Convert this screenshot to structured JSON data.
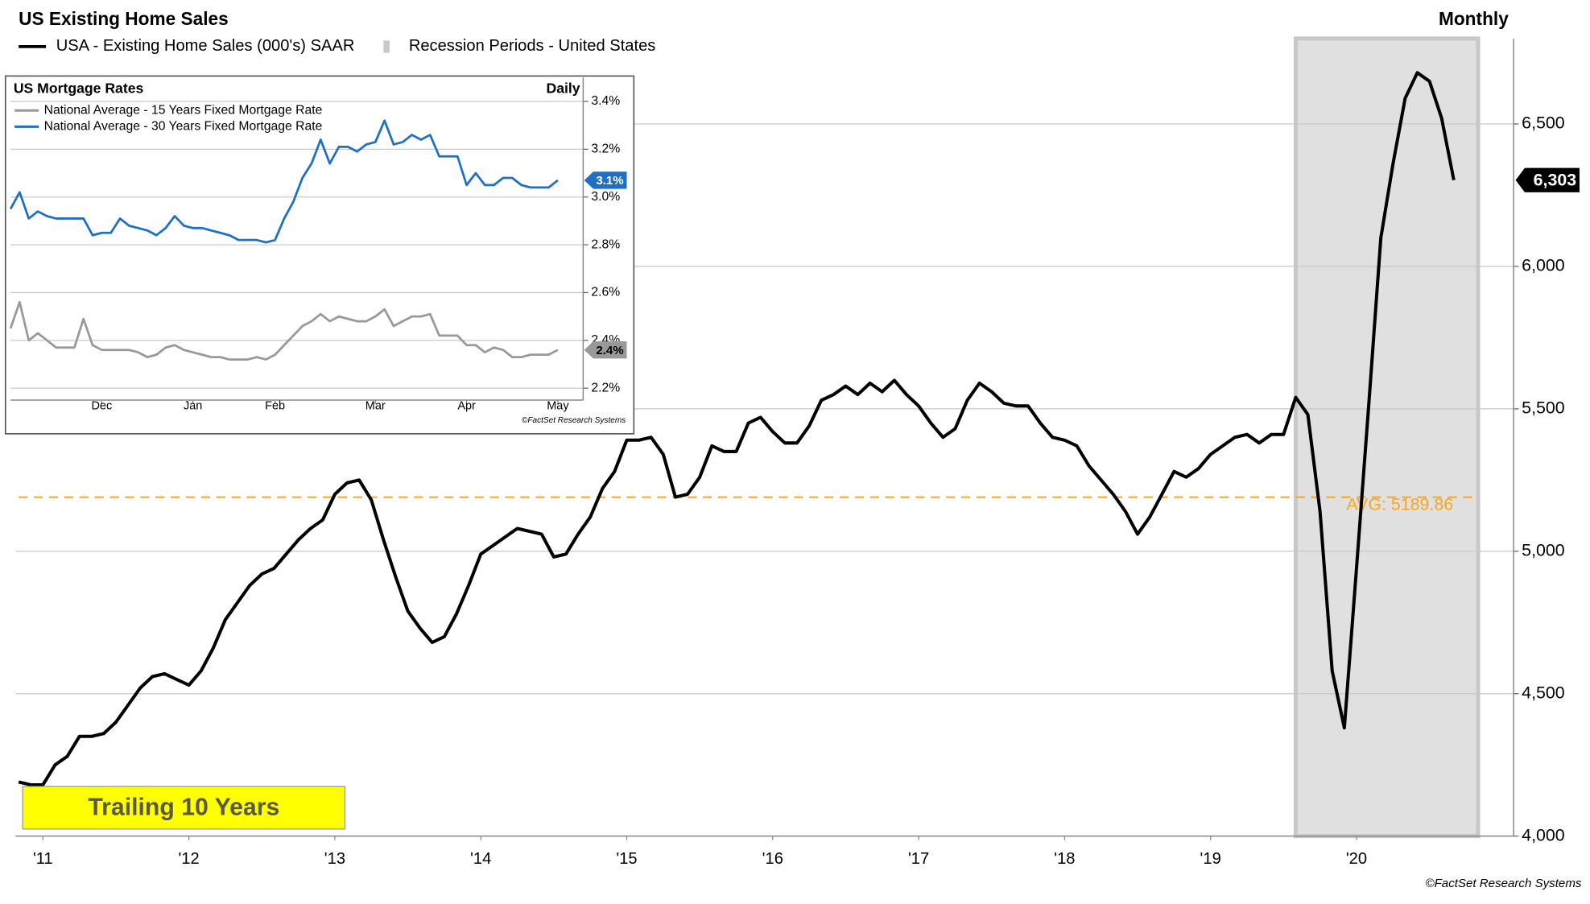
{
  "chart_data": [
    {
      "type": "line",
      "title": "US Existing Home Sales",
      "frequency": "Monthly",
      "categories": [
        null,
        null,
        "'11",
        null,
        null,
        null,
        null,
        null,
        null,
        null,
        null,
        null,
        null,
        null,
        "'12",
        null,
        null,
        null,
        null,
        null,
        null,
        null,
        null,
        null,
        null,
        null,
        "'13",
        null,
        null,
        null,
        null,
        null,
        null,
        null,
        null,
        null,
        null,
        null,
        "'14",
        null,
        null,
        null,
        null,
        null,
        null,
        null,
        null,
        null,
        null,
        null,
        "'15",
        null,
        null,
        null,
        null,
        null,
        null,
        null,
        null,
        null,
        null,
        null,
        "'16",
        null,
        null,
        null,
        null,
        null,
        null,
        null,
        null,
        null,
        null,
        null,
        "'17",
        null,
        null,
        null,
        null,
        null,
        null,
        null,
        null,
        null,
        null,
        null,
        "'18",
        null,
        null,
        null,
        null,
        null,
        null,
        null,
        null,
        null,
        null,
        null,
        "'19",
        null,
        null,
        null,
        null,
        null,
        null,
        null,
        null,
        null,
        null,
        null,
        "'20",
        null,
        null,
        null,
        null,
        null,
        null,
        null,
        null
      ],
      "series": [
        {
          "name": "USA - Existing Home Sales (000's) SAAR",
          "color": "#000000",
          "values": [
            4190,
            4180,
            4180,
            4250,
            4280,
            4350,
            4350,
            4360,
            4400,
            4460,
            4520,
            4560,
            4570,
            4550,
            4530,
            4580,
            4660,
            4760,
            4820,
            4880,
            4920,
            4940,
            4990,
            5040,
            5080,
            5110,
            5200,
            5240,
            5250,
            5180,
            5040,
            4910,
            4790,
            4730,
            4680,
            4700,
            4780,
            4880,
            4990,
            5020,
            5050,
            5080,
            5070,
            5060,
            4980,
            4990,
            5060,
            5120,
            5220,
            5280,
            5390,
            5390,
            5400,
            5340,
            5190,
            5200,
            5260,
            5370,
            5350,
            5350,
            5450,
            5470,
            5420,
            5380,
            5380,
            5440,
            5530,
            5550,
            5580,
            5550,
            5590,
            5560,
            5600,
            5550,
            5510,
            5450,
            5400,
            5430,
            5530,
            5590,
            5560,
            5520,
            5510,
            5510,
            5450,
            5400,
            5390,
            5370,
            5300,
            5250,
            5200,
            5140,
            5060,
            5120,
            5200,
            5280,
            5260,
            5290,
            5340,
            5370,
            5400,
            5410,
            5380,
            5410,
            5410,
            5540,
            5480,
            5140,
            4580,
            4380,
            4940,
            5510,
            6100,
            6360,
            6590,
            6680,
            6650,
            6520,
            6303
          ],
          "value_labels": [
            null,
            null,
            null,
            null,
            null,
            null,
            null,
            null,
            null,
            null,
            null,
            null,
            null,
            null,
            null,
            null,
            null,
            null,
            null,
            null,
            null,
            null,
            null,
            null,
            null,
            null,
            null,
            null,
            null,
            null,
            null,
            null,
            null,
            null,
            null,
            null,
            null,
            null,
            null,
            null,
            null,
            null,
            null,
            null,
            null,
            null,
            null,
            null,
            null,
            null,
            null,
            null,
            null,
            null,
            null,
            null,
            null,
            null,
            null,
            null,
            null,
            null,
            null,
            null,
            null,
            null,
            null,
            null,
            null,
            null,
            null,
            null,
            null,
            null,
            null,
            null,
            null,
            null,
            null,
            null,
            null,
            null,
            null,
            null,
            null,
            null,
            null,
            null,
            null,
            null,
            null,
            null,
            null,
            null,
            null,
            null,
            null,
            null,
            null,
            null,
            null,
            null,
            null,
            null,
            null,
            null,
            null,
            null,
            null,
            null,
            null,
            null,
            null,
            null,
            null,
            null,
            null,
            null,
            "6,303"
          ]
        }
      ],
      "shaded_periods": {
        "name": "Recession Periods - United States",
        "color": "#e0e0e0",
        "ranges": [
          [
            105,
            120
          ]
        ]
      },
      "reference_lines": [
        {
          "value": 5189.86,
          "label": "AVG: 5189.86",
          "color": "#f5a623"
        }
      ],
      "annotation": "Trailing 10 Years",
      "ylim": [
        4000,
        6800
      ],
      "yticks": [
        {
          "value": 4000,
          "label": "4,000"
        },
        {
          "value": 4500,
          "label": "4,500"
        },
        {
          "value": 5000,
          "label": "5,000"
        },
        {
          "value": 5500,
          "label": "5,500"
        },
        {
          "value": 6000,
          "label": "6,000"
        },
        {
          "value": 6500,
          "label": "6,500"
        }
      ],
      "grid": true,
      "footnote": "©FactSet Research Systems"
    },
    {
      "type": "line",
      "title": "US Mortgage Rates",
      "frequency": "Daily",
      "categories": [
        null,
        null,
        null,
        null,
        null,
        null,
        null,
        null,
        null,
        null,
        "Dec",
        null,
        null,
        null,
        null,
        null,
        null,
        null,
        null,
        null,
        "Jan",
        null,
        null,
        null,
        null,
        null,
        null,
        null,
        null,
        "Feb",
        null,
        null,
        null,
        null,
        null,
        null,
        null,
        null,
        null,
        null,
        "Mar",
        null,
        null,
        null,
        null,
        null,
        null,
        null,
        null,
        null,
        "Apr",
        null,
        null,
        null,
        null,
        null,
        null,
        null,
        null,
        null,
        "May"
      ],
      "series": [
        {
          "name": "National Average - 15 Years Fixed Mortgage Rate",
          "color": "#999999",
          "values": [
            2.45,
            2.56,
            2.4,
            2.43,
            2.4,
            2.37,
            2.37,
            2.37,
            2.49,
            2.38,
            2.36,
            2.36,
            2.36,
            2.36,
            2.35,
            2.33,
            2.34,
            2.37,
            2.38,
            2.36,
            2.35,
            2.34,
            2.33,
            2.33,
            2.32,
            2.32,
            2.32,
            2.33,
            2.32,
            2.34,
            2.38,
            2.42,
            2.46,
            2.48,
            2.51,
            2.48,
            2.5,
            2.49,
            2.48,
            2.48,
            2.5,
            2.53,
            2.46,
            2.48,
            2.5,
            2.5,
            2.51,
            2.42,
            2.42,
            2.42,
            2.38,
            2.38,
            2.35,
            2.37,
            2.36,
            2.33,
            2.33,
            2.34,
            2.34,
            2.34,
            2.36
          ],
          "value_labels": [
            null,
            null,
            null,
            null,
            null,
            null,
            null,
            null,
            null,
            null,
            null,
            null,
            null,
            null,
            null,
            null,
            null,
            null,
            null,
            null,
            null,
            null,
            null,
            null,
            null,
            null,
            null,
            null,
            null,
            null,
            null,
            null,
            null,
            null,
            null,
            null,
            null,
            null,
            null,
            null,
            null,
            null,
            null,
            null,
            null,
            null,
            null,
            null,
            null,
            null,
            null,
            null,
            null,
            null,
            null,
            null,
            null,
            null,
            null,
            null,
            "2.4%"
          ]
        },
        {
          "name": "National Average - 30 Years Fixed Mortgage Rate",
          "color": "#1f6fc5",
          "values": [
            2.95,
            3.02,
            2.91,
            2.94,
            2.92,
            2.91,
            2.91,
            2.91,
            2.91,
            2.84,
            2.85,
            2.85,
            2.91,
            2.88,
            2.87,
            2.86,
            2.84,
            2.87,
            2.92,
            2.88,
            2.87,
            2.87,
            2.86,
            2.85,
            2.84,
            2.82,
            2.82,
            2.82,
            2.81,
            2.82,
            2.91,
            2.98,
            3.08,
            3.14,
            3.24,
            3.14,
            3.21,
            3.21,
            3.19,
            3.22,
            3.23,
            3.32,
            3.22,
            3.23,
            3.26,
            3.24,
            3.26,
            3.17,
            3.17,
            3.17,
            3.05,
            3.1,
            3.05,
            3.05,
            3.08,
            3.08,
            3.05,
            3.04,
            3.04,
            3.04,
            3.07
          ],
          "value_labels": [
            null,
            null,
            null,
            null,
            null,
            null,
            null,
            null,
            null,
            null,
            null,
            null,
            null,
            null,
            null,
            null,
            null,
            null,
            null,
            null,
            null,
            null,
            null,
            null,
            null,
            null,
            null,
            null,
            null,
            null,
            null,
            null,
            null,
            null,
            null,
            null,
            null,
            null,
            null,
            null,
            null,
            null,
            null,
            null,
            null,
            null,
            null,
            null,
            null,
            null,
            null,
            null,
            null,
            null,
            null,
            null,
            null,
            null,
            null,
            null,
            "3.1%"
          ]
        }
      ],
      "ylim": [
        2.15,
        3.5
      ],
      "yticks": [
        {
          "value": 2.2,
          "label": "2.2%"
        },
        {
          "value": 2.4,
          "label": "2.4%"
        },
        {
          "value": 2.6,
          "label": "2.6%"
        },
        {
          "value": 2.8,
          "label": "2.8%"
        },
        {
          "value": 3.0,
          "label": "3.0%"
        },
        {
          "value": 3.2,
          "label": "3.2%"
        },
        {
          "value": 3.4,
          "label": "3.4%"
        }
      ],
      "grid": true,
      "footnote": "©FactSet Research Systems"
    }
  ]
}
